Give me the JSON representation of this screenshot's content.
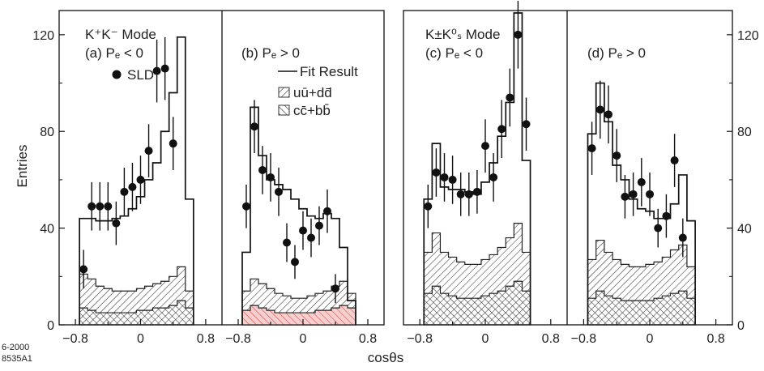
{
  "figure": {
    "ylabel": "Entries",
    "xlabel": "cosθs",
    "yticks": [
      "0",
      "40",
      "80",
      "120"
    ],
    "xticks": [
      "−0.8",
      "0",
      "0.8"
    ],
    "corner_id_line1": "6-2000",
    "corner_id_line2": "8535A1"
  },
  "legend": {
    "sld": "SLD",
    "fit": "Fit Result",
    "uds": "uū+dd̄",
    "cb": "cc̄+bb̄"
  },
  "chart_data": [
    {
      "type": "bar",
      "mode_label": "K⁺K⁻ Mode",
      "pe_label": "(a) Pₑ < 0",
      "xlim": [
        -1,
        1
      ],
      "ylim": [
        0,
        130
      ],
      "bins": [
        -0.75,
        -0.65,
        -0.55,
        -0.45,
        -0.35,
        -0.25,
        -0.15,
        -0.05,
        0.05,
        0.15,
        0.25,
        0.35,
        0.45,
        0.55,
        0.65
      ],
      "data": [
        23,
        49,
        49,
        49,
        42,
        55,
        57,
        60,
        72,
        105,
        106,
        75
      ],
      "data_x": [
        -0.7,
        -0.6,
        -0.5,
        -0.4,
        -0.3,
        -0.2,
        -0.1,
        0.0,
        0.1,
        0.2,
        0.3,
        0.4
      ],
      "data_err": [
        8,
        10,
        10,
        10,
        9,
        10,
        10,
        10,
        11,
        13,
        13,
        11
      ],
      "fit": [
        44,
        44,
        43,
        43,
        44,
        45,
        48,
        53,
        60,
        67,
        80,
        96,
        119,
        52
      ],
      "uds_cb": [
        21,
        19,
        16,
        15,
        14,
        14,
        14,
        15,
        16,
        17,
        18,
        20,
        24,
        14
      ],
      "cb": [
        7,
        6,
        5,
        5,
        5,
        5,
        5,
        6,
        6,
        7,
        7,
        8,
        10,
        7
      ]
    },
    {
      "type": "bar",
      "pe_label": "(b) Pₑ > 0",
      "xlim": [
        -1,
        1
      ],
      "ylim": [
        0,
        130
      ],
      "bins": [
        -0.75,
        -0.65,
        -0.55,
        -0.45,
        -0.35,
        -0.25,
        -0.15,
        -0.05,
        0.05,
        0.15,
        0.25,
        0.35,
        0.45,
        0.55,
        0.65
      ],
      "data": [
        49,
        82,
        64,
        61,
        55,
        34,
        26,
        39,
        36,
        41,
        47,
        15
      ],
      "data_x": [
        -0.7,
        -0.6,
        -0.5,
        -0.4,
        -0.3,
        -0.2,
        -0.1,
        0.0,
        0.1,
        0.2,
        0.3,
        0.4
      ],
      "data_err": [
        9,
        11,
        10,
        10,
        10,
        8,
        7,
        8,
        8,
        8,
        9,
        6
      ],
      "fit": [
        30,
        90,
        70,
        60,
        58,
        56,
        52,
        48,
        45,
        44,
        46,
        44,
        32,
        10
      ],
      "uds_cb": [
        14,
        19,
        17,
        15,
        13,
        12,
        11,
        11,
        12,
        13,
        14,
        16,
        18,
        13
      ],
      "cb": [
        6,
        8,
        7,
        6,
        5,
        5,
        5,
        5,
        5,
        6,
        6,
        7,
        8,
        7
      ]
    },
    {
      "type": "bar",
      "mode_label": "K±K⁰ₛ Mode",
      "pe_label": "(c) Pₑ < 0",
      "xlim": [
        -1,
        1
      ],
      "ylim": [
        0,
        130
      ],
      "bins": [
        -0.75,
        -0.65,
        -0.55,
        -0.45,
        -0.35,
        -0.25,
        -0.15,
        -0.05,
        0.05,
        0.15,
        0.25,
        0.35,
        0.45,
        0.55,
        0.65
      ],
      "data": [
        49,
        63,
        61,
        60,
        54,
        54,
        55,
        74,
        61,
        81,
        94,
        120,
        83
      ],
      "data_x": [
        -0.7,
        -0.6,
        -0.5,
        -0.4,
        -0.3,
        -0.2,
        -0.1,
        0.0,
        0.1,
        0.2,
        0.3,
        0.4,
        0.5
      ],
      "data_err": [
        9,
        10,
        10,
        10,
        9,
        9,
        9,
        11,
        10,
        12,
        12,
        14,
        11
      ],
      "fit": [
        52,
        75,
        57,
        56,
        56,
        55,
        54,
        59,
        67,
        78,
        92,
        129,
        68
      ],
      "uds_cb": [
        30,
        38,
        30,
        28,
        26,
        25,
        25,
        27,
        29,
        32,
        36,
        42,
        30
      ],
      "cb": [
        13,
        16,
        13,
        12,
        11,
        11,
        11,
        12,
        13,
        14,
        16,
        18,
        14
      ]
    },
    {
      "type": "bar",
      "pe_label": "(d) Pₑ > 0",
      "xlim": [
        -1,
        1
      ],
      "ylim": [
        0,
        130
      ],
      "bins": [
        -0.75,
        -0.65,
        -0.55,
        -0.45,
        -0.35,
        -0.25,
        -0.15,
        -0.05,
        0.05,
        0.15,
        0.25,
        0.35,
        0.45,
        0.55,
        0.65
      ],
      "data": [
        73,
        89,
        87,
        70,
        53,
        54,
        59,
        54,
        40,
        45,
        68,
        36
      ],
      "data_x": [
        -0.7,
        -0.6,
        -0.5,
        -0.4,
        -0.3,
        -0.2,
        -0.1,
        0.0,
        0.1,
        0.2,
        0.3,
        0.4
      ],
      "data_err": [
        11,
        12,
        12,
        11,
        9,
        9,
        10,
        9,
        8,
        9,
        11,
        8
      ],
      "fit": [
        79,
        100,
        84,
        66,
        60,
        52,
        48,
        47,
        44,
        44,
        50,
        62,
        43
      ],
      "uds_cb": [
        27,
        35,
        30,
        27,
        25,
        24,
        24,
        25,
        26,
        28,
        31,
        33,
        24
      ],
      "cb": [
        11,
        14,
        12,
        11,
        10,
        10,
        10,
        10,
        11,
        12,
        13,
        14,
        11
      ]
    }
  ]
}
